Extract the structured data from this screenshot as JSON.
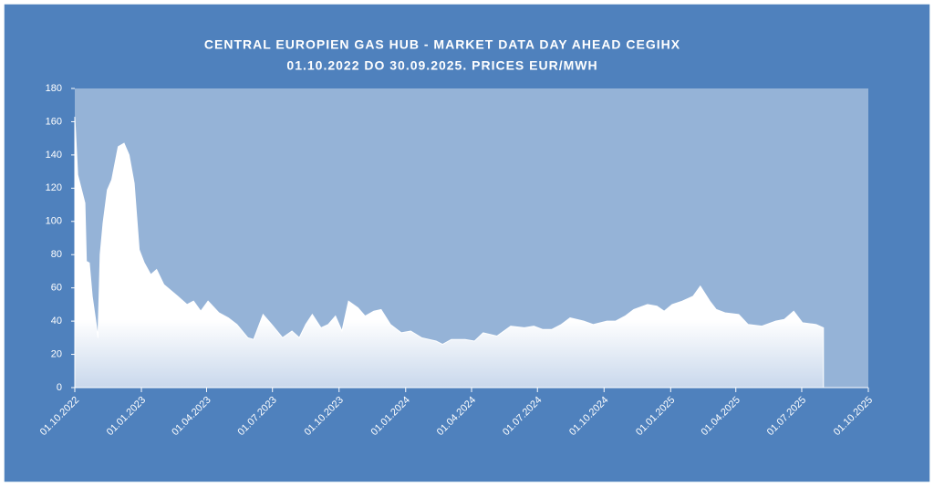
{
  "chart_data": {
    "type": "area",
    "title": "CENTRAL EUROPIEN GAS HUB - MARKET DATA DAY AHEAD CEGIHX",
    "subtitle": "01.10.2022 DO 30.09.2025. PRICES EUR/MWH",
    "x": [
      "01.10.2022",
      "05.10.2022",
      "15.10.2022",
      "17.10.2022",
      "21.10.2022",
      "25.10.2022",
      "30.10.2022",
      "02.11.2022",
      "05.11.2022",
      "09.11.2022",
      "15.11.2022",
      "21.11.2022",
      "30.11.2022",
      "08.12.2022",
      "15.12.2022",
      "22.12.2022",
      "29.12.2022",
      "05.01.2023",
      "14.01.2023",
      "22.01.2023",
      "01.02.2023",
      "20.02.2023",
      "05.03.2023",
      "14.03.2023",
      "24.03.2023",
      "03.04.2023",
      "18.04.2023",
      "01.05.2023",
      "13.05.2023",
      "28.05.2023",
      "05.06.2023",
      "18.06.2023",
      "30.06.2023",
      "15.07.2023",
      "28.07.2023",
      "07.08.2023",
      "16.08.2023",
      "25.08.2023",
      "06.09.2023",
      "16.09.2023",
      "26.09.2023",
      "05.10.2023",
      "14.10.2023",
      "27.10.2023",
      "06.11.2023",
      "18.11.2023",
      "28.11.2023",
      "11.12.2023",
      "26.12.2023",
      "08.01.2024",
      "23.01.2024",
      "12.02.2024",
      "21.02.2024",
      "04.03.2024",
      "23.03.2024",
      "05.04.2024",
      "17.04.2024",
      "06.05.2024",
      "25.05.2024",
      "13.06.2024",
      "26.06.2024",
      "08.07.2024",
      "21.07.2024",
      "03.08.2024",
      "15.08.2024",
      "03.09.2024",
      "16.09.2024",
      "05.10.2024",
      "17.10.2024",
      "30.10.2024",
      "11.11.2024",
      "30.11.2024",
      "13.12.2024",
      "23.12.2024",
      "03.01.2025",
      "17.01.2025",
      "01.02.2025",
      "11.02.2025",
      "24.02.2025",
      "05.03.2025",
      "17.03.2025",
      "05.04.2025",
      "18.04.2025",
      "07.05.2025",
      "26.05.2025",
      "07.06.2025",
      "20.06.2025",
      "02.07.2025",
      "21.07.2025",
      "31.07.2025"
    ],
    "values": [
      163,
      128,
      111,
      76,
      75,
      55,
      40,
      30,
      80,
      99,
      119,
      125,
      145,
      147,
      140,
      123,
      83,
      75,
      68,
      71,
      62,
      55,
      50,
      52,
      46,
      52,
      45,
      42,
      38,
      30,
      29,
      44,
      38,
      30,
      34,
      30,
      38,
      44,
      36,
      38,
      43,
      34,
      52,
      48,
      43,
      46,
      47,
      38,
      33,
      34,
      30,
      28,
      26,
      29,
      29,
      28,
      33,
      31,
      37,
      36,
      37,
      35,
      35,
      38,
      42,
      40,
      38,
      40,
      40,
      43,
      47,
      50,
      49,
      46,
      50,
      52,
      55,
      61,
      52,
      47,
      45,
      44,
      38,
      37,
      40,
      41,
      46,
      39,
      38,
      36
    ],
    "xlim": [
      "01.10.2022",
      "01.10.2025"
    ],
    "xticks": [
      "01.10.2022",
      "01.01.2023",
      "01.04.2023",
      "01.07.2023",
      "01.10.2023",
      "01.01.2024",
      "01.04.2024",
      "01.07.2024",
      "01.10.2024",
      "01.01.2025",
      "01.04.2025",
      "01.07.2025",
      "01.10.2025"
    ],
    "ylim": [
      0,
      180
    ],
    "yticks": [
      0,
      20,
      40,
      60,
      80,
      100,
      120,
      140,
      160,
      180
    ],
    "color": "#ffffff",
    "grid": false
  }
}
